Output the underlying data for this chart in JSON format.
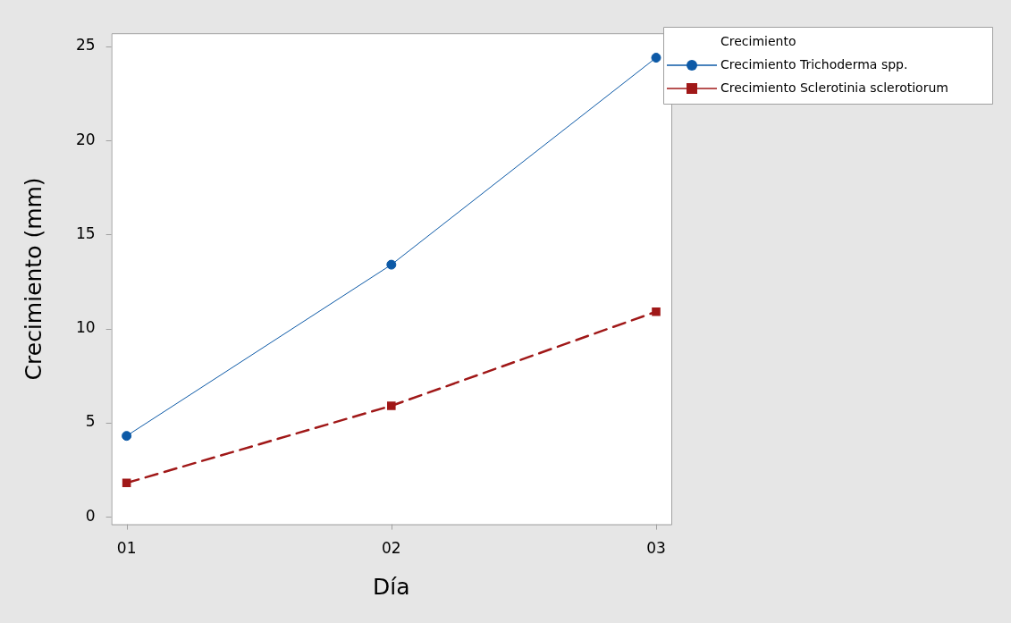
{
  "chart_data": {
    "type": "line",
    "xlabel": "Día",
    "ylabel": "Crecimiento (mm)",
    "legend_title": "Crecimiento",
    "legend": "right",
    "categories": [
      "01",
      "02",
      "03"
    ],
    "ylim": [
      -0.4,
      25.7
    ],
    "yticks": [
      0,
      5,
      10,
      15,
      20,
      25
    ],
    "series": [
      {
        "name": "Crecimiento Trichoderma spp.",
        "color": "#0d5aa7",
        "values": [
          4.3,
          13.4,
          24.4
        ],
        "marker": "circle",
        "line_style": "solid"
      },
      {
        "name": "Crecimiento Sclerotinia sclerotiorum",
        "color": "#a01818",
        "values": [
          1.8,
          5.9,
          10.9
        ],
        "marker": "square",
        "line_style": "dashed"
      }
    ]
  }
}
